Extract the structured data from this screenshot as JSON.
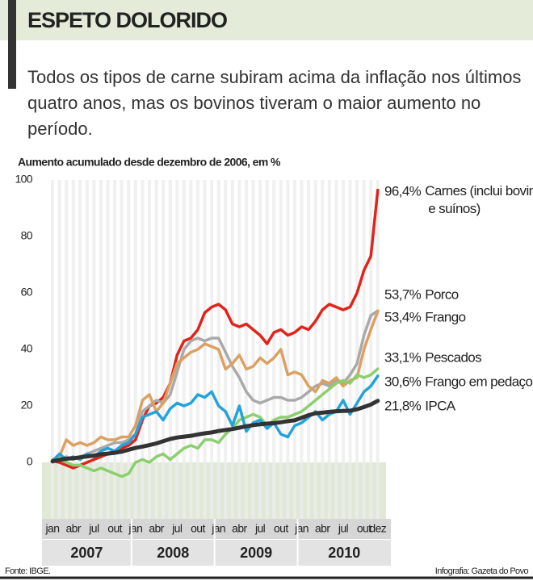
{
  "chart_data": {
    "type": "line",
    "title": "ESPETO DOLORIDO",
    "subtitle": "Todos os tipos de carne subiram acima da inflação nos últimos quatro anos, mas os bovinos tiveram o maior aumento no período.",
    "y_label": "Aumento acumulado desde dezembro de 2006, em %",
    "source": "Fonte: IBGE.",
    "credit": "Infografia: Gazeta do Povo",
    "categories": [
      "jan",
      null,
      null,
      "abr",
      null,
      null,
      "jul",
      null,
      null,
      "out",
      null,
      null,
      "jan",
      null,
      null,
      "abr",
      null,
      null,
      "jul",
      null,
      null,
      "out",
      null,
      null,
      "jan",
      null,
      null,
      "abr",
      null,
      null,
      "jul",
      null,
      null,
      "out",
      null,
      null,
      "jan",
      null,
      null,
      "abr",
      null,
      null,
      "jul",
      null,
      null,
      "out",
      null,
      "dez"
    ],
    "years": [
      "2007",
      "2008",
      "2009",
      "2010"
    ],
    "ylim": [
      -20,
      100
    ],
    "yticks": [
      0,
      20,
      40,
      60,
      80,
      100
    ],
    "series": [
      {
        "name": "Carnes (inclui bovinos e suínos)",
        "color": "#e2231a",
        "values": [
          0.5,
          0,
          -1,
          -2,
          -1,
          0,
          1,
          2,
          3,
          4,
          5,
          6,
          8,
          15,
          20,
          21,
          23,
          28,
          38,
          43,
          44,
          47,
          53,
          55,
          56,
          54,
          49,
          48,
          49,
          47,
          45,
          42,
          46,
          47,
          45,
          46,
          48,
          47,
          50,
          54,
          56,
          55,
          54,
          55,
          60,
          68,
          73,
          96.4
        ],
        "value_labels": [
          null,
          null,
          null,
          null,
          null,
          null,
          null,
          null,
          null,
          null,
          null,
          null,
          null,
          null,
          null,
          null,
          null,
          null,
          null,
          null,
          null,
          null,
          null,
          null,
          null,
          null,
          null,
          null,
          null,
          null,
          null,
          null,
          null,
          null,
          null,
          null,
          null,
          null,
          null,
          null,
          null,
          null,
          null,
          null,
          null,
          null,
          null,
          "96,4%"
        ]
      },
      {
        "name": "Porco",
        "color": "#a9a9a9",
        "values": [
          0.5,
          1,
          2,
          1,
          2,
          3,
          4,
          5,
          6,
          7,
          7,
          8,
          10,
          18,
          20,
          22,
          21,
          24,
          32,
          40,
          43,
          44,
          43,
          44,
          44,
          39,
          34,
          30,
          25,
          22,
          21,
          22,
          23,
          23,
          22,
          22,
          23,
          25,
          27,
          28,
          27,
          29,
          28,
          31,
          35,
          45,
          52,
          53.7
        ],
        "value_labels": [
          null,
          null,
          null,
          null,
          null,
          null,
          null,
          null,
          null,
          null,
          null,
          null,
          null,
          null,
          null,
          null,
          null,
          null,
          null,
          null,
          null,
          null,
          null,
          null,
          null,
          null,
          null,
          null,
          null,
          null,
          null,
          null,
          null,
          null,
          null,
          null,
          null,
          null,
          null,
          null,
          null,
          null,
          null,
          null,
          null,
          null,
          null,
          "53,7%"
        ]
      },
      {
        "name": "Frango",
        "color": "#dba163",
        "values": [
          1,
          2,
          8,
          6,
          7,
          6,
          7,
          9,
          8,
          8,
          9,
          9,
          13,
          22,
          24,
          18,
          21,
          28,
          35,
          37,
          39,
          40,
          42,
          41,
          40,
          33,
          35,
          38,
          33,
          34,
          37,
          35,
          37,
          40,
          31,
          32,
          31,
          27,
          25,
          29,
          28,
          30,
          27,
          29,
          30,
          40,
          47,
          53.4
        ],
        "value_labels": [
          null,
          null,
          null,
          null,
          null,
          null,
          null,
          null,
          null,
          null,
          null,
          null,
          null,
          null,
          null,
          null,
          null,
          null,
          null,
          null,
          null,
          null,
          null,
          null,
          null,
          null,
          null,
          null,
          null,
          null,
          null,
          null,
          null,
          null,
          null,
          null,
          null,
          null,
          null,
          null,
          null,
          null,
          null,
          null,
          null,
          null,
          null,
          "53,4%"
        ]
      },
      {
        "name": "Pescados",
        "color": "#8ccf6f",
        "values": [
          0,
          1,
          0,
          -1,
          -1,
          -2,
          -3,
          -2,
          -3,
          -4,
          -5,
          -4,
          0,
          1,
          0,
          2,
          3,
          1,
          3,
          5,
          6,
          5,
          8,
          8,
          7,
          10,
          12,
          15,
          16,
          17,
          16,
          13,
          15,
          16,
          16,
          17,
          18,
          20,
          22,
          24,
          26,
          28,
          29,
          28,
          31,
          30,
          31,
          33.1
        ],
        "value_labels": [
          null,
          null,
          null,
          null,
          null,
          null,
          null,
          null,
          null,
          null,
          null,
          null,
          null,
          null,
          null,
          null,
          null,
          null,
          null,
          null,
          null,
          null,
          null,
          null,
          null,
          null,
          null,
          null,
          null,
          null,
          null,
          null,
          null,
          null,
          null,
          null,
          null,
          null,
          null,
          null,
          null,
          null,
          null,
          null,
          null,
          null,
          null,
          "33,1%"
        ]
      },
      {
        "name": "Frango em pedaços",
        "color": "#23a3dc",
        "values": [
          0.5,
          3,
          1,
          2,
          1,
          3,
          2,
          4,
          5,
          4,
          6,
          7,
          10,
          16,
          17,
          18,
          15,
          19,
          21,
          20,
          21,
          24,
          23,
          25,
          20,
          18,
          13,
          20,
          11,
          14,
          15,
          12,
          14,
          10,
          9,
          13,
          14,
          16,
          18,
          15,
          17,
          18,
          22,
          17,
          21,
          25,
          27,
          30.6
        ],
        "value_labels": [
          null,
          null,
          null,
          null,
          null,
          null,
          null,
          null,
          null,
          null,
          null,
          null,
          null,
          null,
          null,
          null,
          null,
          null,
          null,
          null,
          null,
          null,
          null,
          null,
          null,
          null,
          null,
          null,
          null,
          null,
          null,
          null,
          null,
          null,
          null,
          null,
          null,
          null,
          null,
          null,
          null,
          null,
          null,
          null,
          null,
          null,
          null,
          "30,6%"
        ]
      },
      {
        "name": "IPCA",
        "color": "#333333",
        "values": [
          0.4,
          0.9,
          1.3,
          1.5,
          1.8,
          2.1,
          2.4,
          2.9,
          3.1,
          3.4,
          3.8,
          4.5,
          5.1,
          5.6,
          6.1,
          6.7,
          7.5,
          8.3,
          8.8,
          9.1,
          9.4,
          9.9,
          10.3,
          10.6,
          11.1,
          11.5,
          11.8,
          12.3,
          12.8,
          13.2,
          13.5,
          13.7,
          13.9,
          14.2,
          14.6,
          14.9,
          15.8,
          16.7,
          17.4,
          17.6,
          17.9,
          18.1,
          18.2,
          18.3,
          18.8,
          19.6,
          20.5,
          21.8
        ],
        "value_labels": [
          null,
          null,
          null,
          null,
          null,
          null,
          null,
          null,
          null,
          null,
          null,
          null,
          null,
          null,
          null,
          null,
          null,
          null,
          null,
          null,
          null,
          null,
          null,
          null,
          null,
          null,
          null,
          null,
          null,
          null,
          null,
          null,
          null,
          null,
          null,
          null,
          null,
          null,
          null,
          null,
          null,
          null,
          null,
          null,
          null,
          null,
          null,
          "21,8%"
        ]
      }
    ]
  }
}
